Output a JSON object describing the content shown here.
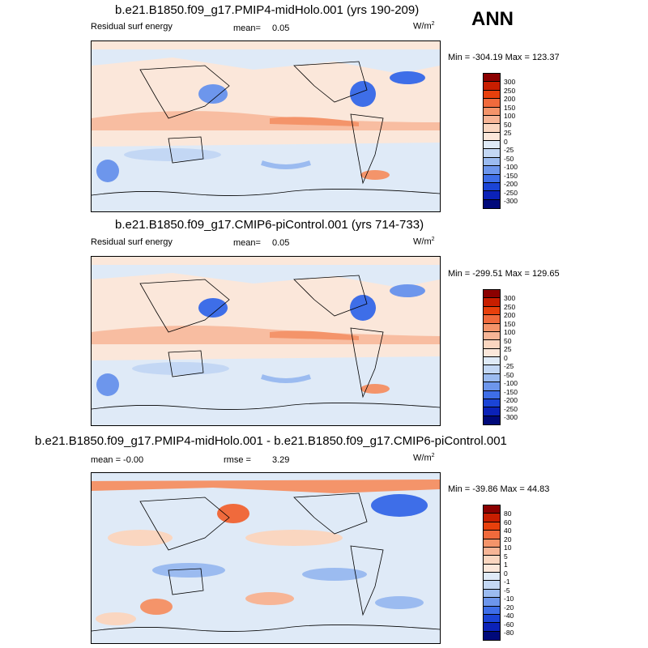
{
  "ann_label": "ANN",
  "panels": [
    {
      "title": "b.e21.B1850.f09_g17.PMIP4-midHolo.001 (yrs 190-209)",
      "left_label": "Residual surf energy",
      "stat_label": "mean=",
      "stat_value": "0.05",
      "units": "W/m",
      "units_sup": "2",
      "minmax": "Min = -304.19 Max = 123.37",
      "cbar_labels": [
        "300",
        "250",
        "200",
        "150",
        "100",
        "50",
        "25",
        "0",
        "-25",
        "-50",
        "-100",
        "-150",
        "-200",
        "-250",
        "-300"
      ],
      "cbar_colors": [
        "#8b0000",
        "#c81e00",
        "#e8400c",
        "#f06a3c",
        "#f4946a",
        "#f7b596",
        "#fad6c0",
        "#fbe7da",
        "#dfeaf7",
        "#c3d7f4",
        "#9bbbf0",
        "#6d96ec",
        "#3e6ee8",
        "#1b44d6",
        "#0b22b8",
        "#00097a"
      ]
    },
    {
      "title": "b.e21.B1850.f09_g17.CMIP6-piControl.001 (yrs 714-733)",
      "left_label": "Residual surf energy",
      "stat_label": "mean=",
      "stat_value": "0.05",
      "units": "W/m",
      "units_sup": "2",
      "minmax": "Min = -299.51 Max = 129.65",
      "cbar_labels": [
        "300",
        "250",
        "200",
        "150",
        "100",
        "50",
        "25",
        "0",
        "-25",
        "-50",
        "-100",
        "-150",
        "-200",
        "-250",
        "-300"
      ],
      "cbar_colors": [
        "#8b0000",
        "#c81e00",
        "#e8400c",
        "#f06a3c",
        "#f4946a",
        "#f7b596",
        "#fad6c0",
        "#fbe7da",
        "#dfeaf7",
        "#c3d7f4",
        "#9bbbf0",
        "#6d96ec",
        "#3e6ee8",
        "#1b44d6",
        "#0b22b8",
        "#00097a"
      ]
    },
    {
      "title": "b.e21.B1850.f09_g17.PMIP4-midHolo.001 - b.e21.B1850.f09_g17.CMIP6-piControl.001",
      "left_label": "mean =  -0.00",
      "stat_label": "rmse =",
      "stat_value": "3.29",
      "units": "W/m",
      "units_sup": "2",
      "minmax": "Min = -39.86 Max =  44.83",
      "cbar_labels": [
        "80",
        "60",
        "40",
        "20",
        "10",
        "5",
        "1",
        "0",
        "-1",
        "-5",
        "-10",
        "-20",
        "-40",
        "-60",
        "-80"
      ],
      "cbar_colors": [
        "#8b0000",
        "#c81e00",
        "#e8400c",
        "#f06a3c",
        "#f4946a",
        "#f7b596",
        "#fad6c0",
        "#fbe7da",
        "#dfeaf7",
        "#c3d7f4",
        "#9bbbf0",
        "#6d96ec",
        "#3e6ee8",
        "#1b44d6",
        "#0b22b8",
        "#00097a"
      ]
    }
  ]
}
